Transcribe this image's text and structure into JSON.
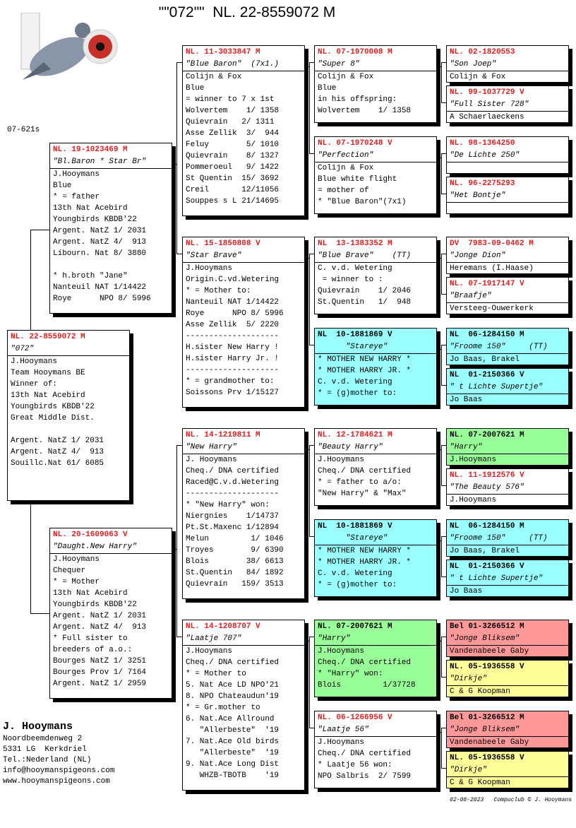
{
  "title": "\"\"072\"\"  NL. 22-8559072 M",
  "code": "07-621s",
  "boxes": [
    {
      "ring": "NL. 22-8559072 M",
      "name": "\"072\"",
      "bg": "#ffffff",
      "lines": [
        [
          "J.Hooymans",
          "Team Hooymans BE",
          "Winner of:",
          "13th Nat Acebird",
          "Youngbirds KBDB'22",
          "Great Middle Dist."
        ],
        [
          "Argent. NatZ 1/ 2031",
          "Argent. NatZ 4/  913",
          "Souillc.Nat 61/ 6085"
        ]
      ]
    },
    {
      "ring": "NL. 19-1023469 M",
      "name": "\"Bl.Baron * Star Br\"",
      "bg": "#ffffff",
      "lines": [
        [
          "J.Hooymans",
          "Blue",
          "* = father",
          "13th Nat Acebird",
          "Youngbirds KBDB'22",
          "Argent. NatZ 1/ 2031",
          "Argent. NatZ 4/  913",
          "Libourn. Nat 8/ 3880"
        ],
        [
          "* h.broth \"Jane\"",
          "Nanteuil NAT 1/14422",
          "Roye      NPO 8/ 5996"
        ]
      ]
    },
    {
      "ring": "NL. 20-1609063 V",
      "name": "\"Daught.New Harry\"",
      "bg": "#ffffff",
      "lines": [
        [
          "J.Hooymans",
          "Chequer",
          "* = Mother",
          "13th Nat Acebird",
          "Youngbirds KBDB'22",
          "Argent. NatZ 1/ 2031",
          "Argent. NatZ 4/  913",
          "* Full sister to",
          "breeders of a.o.:",
          "Bourges NatZ 1/ 3251",
          "Bourges Prov 1/ 7164",
          "Argent. NatZ 1/ 2959"
        ]
      ]
    },
    {
      "ring": "NL. 11-3033847 M",
      "name": "\"Blue Baron\"  (7x1.)",
      "bg": "#ffffff",
      "lines": [
        [
          "Colijn & Fox",
          "Blue",
          "= winner to 7 x 1st",
          "Wolvertem    1/ 1358",
          "Quievrain   2/ 1311",
          "Asse Zellik  3/  944",
          "Feluy        5/ 1010",
          "Quievrain    8/ 1327",
          "Pommeroeul   9/ 1422",
          "St Quentin  15/ 3692",
          "Creil       12/11056",
          "Souppes s L 21/14695"
        ]
      ]
    },
    {
      "ring": "NL. 15-1850808 V",
      "name": "\"Star Brave\"",
      "bg": "#ffffff",
      "lines": [
        [
          "J.Hooymans",
          "Origin.C.vd.Wetering",
          "* = Mother to:",
          "Nanteuil NAT 1/14422",
          "Roye      NPO 8/ 5996",
          "Asse Zellik  5/ 2220",
          "--------------------",
          "H.sister New Harry !",
          "H.sister Harry Jr. !",
          "--------------------",
          "* = grandmother to:",
          "Soissons Prv 1/15127"
        ]
      ]
    },
    {
      "ring": "NL. 14-1219811 M",
      "name": "\"New Harry\"",
      "bg": "#ffffff",
      "lines": [
        [
          "J. Hooymans",
          "Cheq./ DNA certified",
          "Raced@C.v.d.Wetering",
          "--------------------",
          "* \"New Harry\" won:",
          "Niergnies    1/14737",
          "Pt.St.Maxenc 1/12894",
          "Melun         1/ 1046",
          "Troyes        9/ 6390",
          "Blois        38/ 6613",
          "St.Quentin   84/ 1892",
          "Quievrain   159/ 3513"
        ]
      ]
    },
    {
      "ring": "NL. 14-1208707 V",
      "name": "\"Laatje 707\"",
      "bg": "#ffffff",
      "lines": [
        [
          "J.Hooymans",
          "Cheq./ DNA certified",
          "* = Mother to",
          "5. Nat Ace LD NPO'21",
          "8. NPO Chateaudun'19",
          "* = Gr.mother to",
          "6. Nat.Ace Allround",
          "   \"Allerbeste\"  '19",
          "7. Nat.Ace Old birds",
          "   \"Allerbeste\"  '19",
          "9. Nat.Ace Long Dist",
          "   WHZB-TBOTB    '19"
        ]
      ]
    },
    {
      "ring": "NL. 07-1970008 M",
      "name": "\"Super 8\"",
      "bg": "#ffffff",
      "lines": [
        [
          "Colijn & Fox",
          "Blue",
          "in his offspring:",
          "Wolvertem    1/ 1358"
        ]
      ]
    },
    {
      "ring": "NL. 07-1970248 V",
      "name": "\"Perfection\"",
      "bg": "#ffffff",
      "lines": [
        [
          "Colijn & Fox",
          "Blue white flight",
          "= mother of",
          "* \"Blue Baron\"(7x1)"
        ]
      ]
    },
    {
      "ring": "NL  13-1383352 M",
      "name": "\"Blue Brave\"    (TT)",
      "bg": "#ffffff",
      "lines": [
        [
          "C. v.d. Wetering",
          " = winner to :",
          "Quievrain    1/ 2046",
          "St.Quentin   1/  948"
        ]
      ]
    },
    {
      "ring": "NL  10-1881869 V",
      "name": "      \"Stareye\"",
      "bg": "#99ffff",
      "lines": [
        [
          "* MOTHER NEW HARRY *",
          "* MOTHER HARRY JR. *",
          "C. v.d. Wetering",
          "* = (g)mother to:"
        ]
      ]
    },
    {
      "ring": "NL. 12-1784621 M",
      "name": "\"Beauty Harry\"",
      "bg": "#ffffff",
      "lines": [
        [
          "J.Hooymans",
          "Cheq./ DNA certified",
          "* = father to a/o:",
          "\"New Harry\" & \"Max\""
        ]
      ]
    },
    {
      "ring": "NL  10-1881869 V",
      "name": "      \"Stareye\"",
      "bg": "#99ffff",
      "lines": [
        [
          "* MOTHER NEW HARRY *",
          "* MOTHER HARRY JR. *",
          "C. v.d. Wetering",
          "* = (g)mother to:"
        ]
      ]
    },
    {
      "ring": "NL. 07-2007621 M",
      "name": "\"Harry\"",
      "bg": "#99ff99",
      "lines": [
        [
          "J.Hooymans",
          "Cheq./ DNA certified",
          "* \"Harry\" won:",
          "Blois         1/37728"
        ]
      ]
    },
    {
      "ring": "NL. 06-1266956 V",
      "name": "\"Laatje 56\"",
      "bg": "#ffffff",
      "lines": [
        [
          "J.Hooymans",
          "Cheq./ DNA certified",
          "* Laatje 56 won:",
          "NPO Salbris  2/ 7599"
        ]
      ]
    },
    {
      "ring": "NL. 02-1820553",
      "name": "\"Son Joep\"",
      "bg": "#ffffff",
      "lines": [
        [
          "Colijn & Fox"
        ]
      ]
    },
    {
      "ring": "NL. 99-1037729 V",
      "name": "\"Full Sister 728\"",
      "bg": "#ffffff",
      "lines": [
        [
          "A Schaerlaeckens"
        ]
      ]
    },
    {
      "ring": "NL. 98-1364250",
      "name": "\"De Lichte 250\"",
      "bg": "#ffffff",
      "lines": []
    },
    {
      "ring": "NL. 96-2275293",
      "name": "\"Het Bontje\"",
      "bg": "#ffffff",
      "lines": []
    },
    {
      "ring": "DV  7983-09-0462 M",
      "name": "\"Jonge Dion\"",
      "bg": "#ffffff",
      "lines": [
        [
          "Heremans (I.Haase)"
        ]
      ]
    },
    {
      "ring": "NL. 07-1917147 V",
      "name": "\"Braafje\"",
      "bg": "#ffffff",
      "lines": [
        [
          "Versteeg-Ouwerkerk"
        ]
      ]
    },
    {
      "ring": "NL  06-1284150 M",
      "name": "\"Froome 150\"     (TT)",
      "bg": "#99ffff",
      "lines": [
        [
          "Jo Baas, Brakel"
        ]
      ]
    },
    {
      "ring": "NL  01-2150366 V",
      "name": "\" t Lichte Supertje\"",
      "bg": "#99ffff",
      "lines": [
        [
          "Jo Baas"
        ]
      ]
    },
    {
      "ring": "NL. 07-2007621 M",
      "name": "\"Harry\"",
      "bg": "#99ff99",
      "lines": [
        [
          "J.Hooymans"
        ]
      ]
    },
    {
      "ring": "NL. 11-1912576 V",
      "name": "\"The Beauty 576\"",
      "bg": "#ffffff",
      "lines": [
        [
          "J.Hooymans"
        ]
      ]
    },
    {
      "ring": "NL  06-1284150 M",
      "name": "\"Froome 150\"     (TT)",
      "bg": "#99ffff",
      "lines": [
        [
          "Jo Baas, Brakel"
        ]
      ]
    },
    {
      "ring": "NL  01-2150366 V",
      "name": "\" t Lichte Supertje\"",
      "bg": "#99ffff",
      "lines": [
        [
          "Jo Baas"
        ]
      ]
    },
    {
      "ring": "Bel 01-3266512 M",
      "name": "\"Jonge Bliksem\"",
      "bg": "#ff9999",
      "lines": [
        [
          "Vandenabeele Gaby"
        ]
      ]
    },
    {
      "ring": "NL. 05-1936558 V",
      "name": "\"Dirkje\"",
      "bg": "#ffff99",
      "lines": [
        [
          "C & G Koopman"
        ]
      ]
    },
    {
      "ring": "Bel 01-3266512 M",
      "name": "\"Jonge Bliksem\"",
      "bg": "#ff9999",
      "lines": [
        [
          "Vandenabeele Gaby"
        ]
      ]
    },
    {
      "ring": "NL. 05-1936558 V",
      "name": "\"Dirkje\"",
      "bg": "#ffff99",
      "lines": [
        [
          "C & G Koopman"
        ]
      ]
    }
  ],
  "owner": {
    "name": "J. Hooymans",
    "lines": [
      "Noordbeemdenweg 2",
      "5331 LG  Kerkdriel",
      "Tel.:Nederland (NL)",
      "info@hooymanspigeons.com",
      "www.hooymanspigeons.com"
    ]
  },
  "footer": "02-08-2023   Compuclub © J. Hooymans"
}
